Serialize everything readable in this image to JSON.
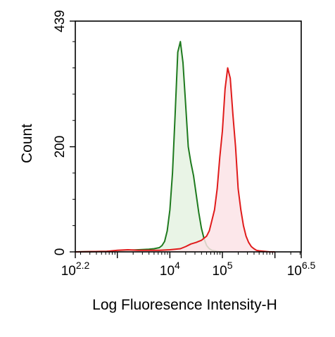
{
  "chart_data": {
    "type": "area",
    "title": "",
    "xlabel": "Log Fluoresence Intensity-H",
    "ylabel": "Count",
    "xscale": "log",
    "xlim_log10": [
      2.2,
      6.5
    ],
    "ylim": [
      0,
      439
    ],
    "grid": false,
    "legend": "none",
    "x_ticks": [
      {
        "base": "10",
        "exp": "2.2",
        "log10": 2.2
      },
      {
        "base": "10",
        "exp": "4",
        "log10": 4
      },
      {
        "base": "10",
        "exp": "5",
        "log10": 5
      },
      {
        "base": "10",
        "exp": "6.5",
        "log10": 6.5
      }
    ],
    "y_ticks": [
      {
        "label": "0",
        "value": 0
      },
      {
        "label": "200",
        "value": 200
      },
      {
        "label": "439",
        "value": 439
      }
    ],
    "series": [
      {
        "color": "#1e7a1e",
        "fill": "#e5f2e2",
        "log10_x": [
          2.2,
          2.8,
          3.0,
          3.2,
          3.4,
          3.6,
          3.7,
          3.8,
          3.85,
          3.9,
          3.95,
          4.0,
          4.05,
          4.1,
          4.15,
          4.2,
          4.25,
          4.3,
          4.35,
          4.4,
          4.45,
          4.5,
          4.55,
          4.6,
          4.65,
          4.7,
          4.75,
          4.8,
          4.85,
          4.9,
          4.95,
          5.0
        ],
        "y": [
          0,
          1,
          2,
          3,
          4,
          5,
          6,
          8,
          12,
          20,
          40,
          80,
          150,
          260,
          380,
          400,
          360,
          280,
          200,
          170,
          145,
          110,
          75,
          45,
          25,
          12,
          6,
          3,
          2,
          1,
          0,
          0
        ]
      },
      {
        "color": "#e01b1b",
        "fill": "#fbe3e6",
        "log10_x": [
          2.2,
          2.8,
          3.0,
          3.2,
          3.4,
          3.6,
          3.8,
          4.0,
          4.2,
          4.3,
          4.4,
          4.5,
          4.6,
          4.65,
          4.7,
          4.75,
          4.8,
          4.85,
          4.9,
          4.95,
          5.0,
          5.05,
          5.1,
          5.15,
          5.2,
          5.25,
          5.3,
          5.35,
          5.4,
          5.45,
          5.5,
          5.55,
          5.6,
          5.65,
          5.7,
          5.8,
          5.9,
          6.0
        ],
        "y": [
          0,
          1,
          3,
          4,
          3,
          3,
          3,
          4,
          6,
          10,
          15,
          18,
          22,
          26,
          30,
          40,
          60,
          80,
          120,
          180,
          230,
          310,
          350,
          330,
          260,
          200,
          120,
          80,
          50,
          30,
          18,
          10,
          6,
          3,
          2,
          1,
          0,
          0
        ]
      }
    ]
  }
}
